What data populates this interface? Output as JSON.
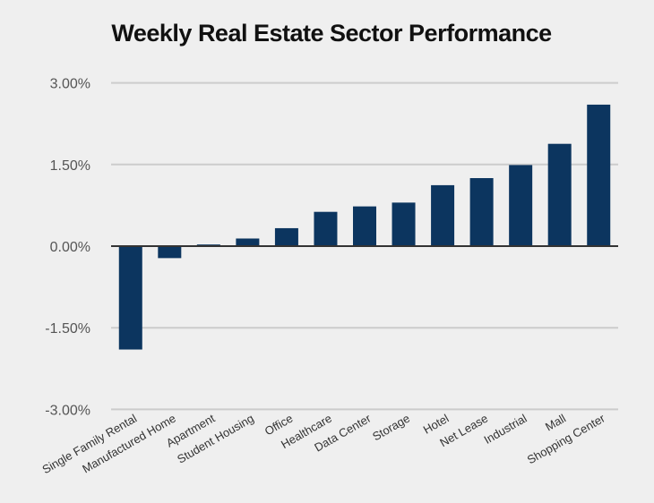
{
  "chart_data": {
    "type": "bar",
    "title": "Weekly Real Estate Sector Performance",
    "xlabel": "",
    "ylabel": "",
    "categories": [
      "Single Family Rental",
      "Manufactured Home",
      "Apartment",
      "Student Housing",
      "Office",
      "Healthcare",
      "Data Center",
      "Storage",
      "Hotel",
      "Net Lease",
      "Industrial",
      "Mall",
      "Shopping Center"
    ],
    "values": [
      -1.9,
      -0.22,
      0.03,
      0.14,
      0.33,
      0.63,
      0.73,
      0.8,
      1.12,
      1.25,
      1.49,
      1.88,
      2.6
    ],
    "unit": "%",
    "ylim": [
      -3.0,
      3.0
    ],
    "yticks": [
      3.0,
      1.5,
      0.0,
      -1.5,
      -3.0
    ],
    "ytick_labels": [
      "3.00%",
      "1.50%",
      "0.00%",
      "-1.50%",
      "-3.00%"
    ],
    "grid": true,
    "legend": "none",
    "colors": {
      "bar": "#0c355f",
      "grid": "#cccccc",
      "zero_axis": "#333333",
      "background": "#efefef"
    }
  }
}
